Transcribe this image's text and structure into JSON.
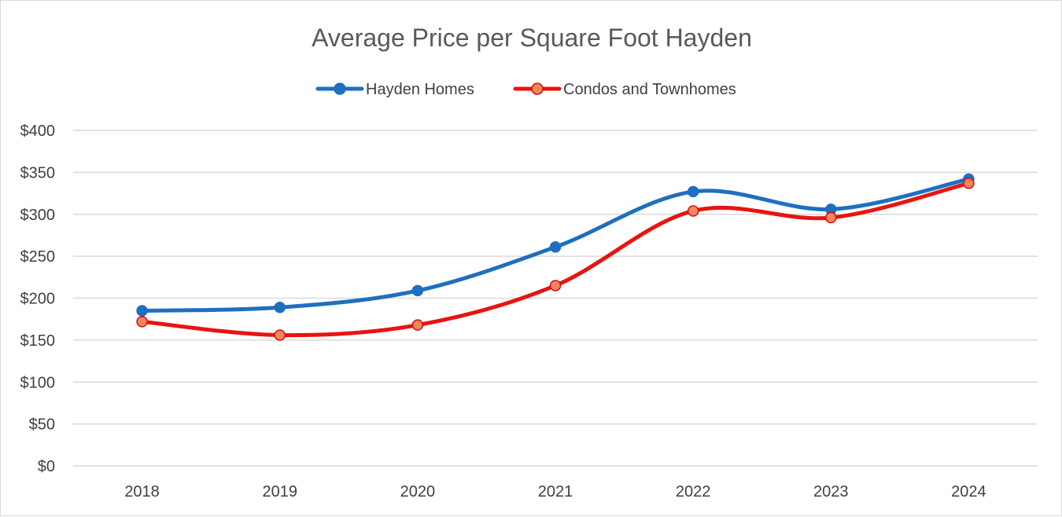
{
  "chart_data": {
    "type": "line",
    "title": "Average Price per Square Foot Hayden",
    "xlabel": "",
    "ylabel": "",
    "categories": [
      "2018",
      "2019",
      "2020",
      "2021",
      "2022",
      "2023",
      "2024"
    ],
    "ylim": [
      0,
      400
    ],
    "yticks": [
      0,
      50,
      100,
      150,
      200,
      250,
      300,
      350,
      400
    ],
    "ytick_labels": [
      "$0",
      "$50",
      "$100",
      "$150",
      "$200",
      "$250",
      "$300",
      "$350",
      "$400"
    ],
    "grid": true,
    "legend_position": "top",
    "smooth": true,
    "series": [
      {
        "name": "Hayden Homes",
        "color": "#1F6FBF",
        "marker_fill": "#1F6FBF",
        "marker_stroke": "#1F6FBF",
        "values": [
          185,
          189,
          209,
          261,
          327,
          306,
          342
        ]
      },
      {
        "name": "Condos and Townhomes",
        "color": "#E8140F",
        "marker_fill": "#F4845A",
        "marker_stroke": "#D01010",
        "values": [
          172,
          156,
          168,
          215,
          304,
          296,
          337
        ]
      }
    ]
  }
}
